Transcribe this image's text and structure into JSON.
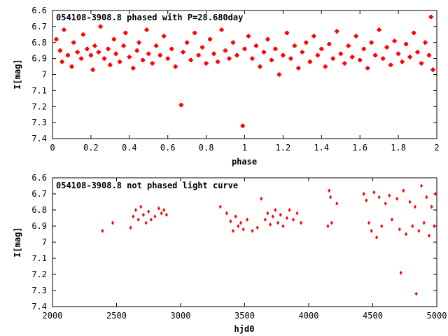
{
  "chart_data": [
    {
      "type": "scatter",
      "title": "054108-3908.8 phased with P=28.680day",
      "xlabel": "phase",
      "ylabel": "I[mag]",
      "xlim": [
        0,
        2
      ],
      "ylim": [
        7.4,
        6.6
      ],
      "y_inverted": true,
      "grid": false,
      "color": "#ff0000",
      "xticks": [
        "0",
        "0.2",
        "0.4",
        "0.6",
        "0.8",
        "1",
        "1.2",
        "1.4",
        "1.6",
        "1.8",
        "2"
      ],
      "yticks": [
        "6.6",
        "6.7",
        "6.8",
        "6.9",
        "7",
        "7.1",
        "7.2",
        "7.3",
        "7.4"
      ],
      "series": [
        {
          "values": [
            [
              0.02,
              6.78
            ],
            [
              0.04,
              6.85
            ],
            [
              0.05,
              6.92
            ],
            [
              0.06,
              6.72
            ],
            [
              0.08,
              6.88
            ],
            [
              0.1,
              6.95
            ],
            [
              0.11,
              6.8
            ],
            [
              0.13,
              6.86
            ],
            [
              0.15,
              6.9
            ],
            [
              0.16,
              6.75
            ],
            [
              0.18,
              6.84
            ],
            [
              0.2,
              6.88
            ],
            [
              0.21,
              6.97
            ],
            [
              0.22,
              6.82
            ],
            [
              0.24,
              6.86
            ],
            [
              0.25,
              6.7
            ],
            [
              0.27,
              6.9
            ],
            [
              0.29,
              6.84
            ],
            [
              0.3,
              6.94
            ],
            [
              0.32,
              6.78
            ],
            [
              0.33,
              6.87
            ],
            [
              0.35,
              6.92
            ],
            [
              0.37,
              6.82
            ],
            [
              0.38,
              6.74
            ],
            [
              0.4,
              6.89
            ],
            [
              0.42,
              6.96
            ],
            [
              0.44,
              6.85
            ],
            [
              0.45,
              6.8
            ],
            [
              0.47,
              6.91
            ],
            [
              0.49,
              6.72
            ],
            [
              0.5,
              6.87
            ],
            [
              0.52,
              6.93
            ],
            [
              0.54,
              6.82
            ],
            [
              0.56,
              6.88
            ],
            [
              0.58,
              6.76
            ],
            [
              0.6,
              6.9
            ],
            [
              0.62,
              6.84
            ],
            [
              0.64,
              6.95
            ],
            [
              0.67,
              7.19
            ],
            [
              0.68,
              6.86
            ],
            [
              0.7,
              6.8
            ],
            [
              0.72,
              6.91
            ],
            [
              0.74,
              6.74
            ],
            [
              0.76,
              6.88
            ],
            [
              0.78,
              6.83
            ],
            [
              0.8,
              6.93
            ],
            [
              0.82,
              6.78
            ],
            [
              0.84,
              6.87
            ],
            [
              0.86,
              6.92
            ],
            [
              0.88,
              6.72
            ],
            [
              0.9,
              6.85
            ],
            [
              0.92,
              6.9
            ],
            [
              0.94,
              6.8
            ],
            [
              0.96,
              6.88
            ],
            [
              0.99,
              7.32
            ],
            [
              1.0,
              6.84
            ],
            [
              1.02,
              6.76
            ],
            [
              1.04,
              6.9
            ],
            [
              1.06,
              6.82
            ],
            [
              1.08,
              6.95
            ],
            [
              1.1,
              6.86
            ],
            [
              1.12,
              6.78
            ],
            [
              1.14,
              6.91
            ],
            [
              1.16,
              6.84
            ],
            [
              1.18,
              7.0
            ],
            [
              1.2,
              6.88
            ],
            [
              1.22,
              6.74
            ],
            [
              1.24,
              6.9
            ],
            [
              1.26,
              6.82
            ],
            [
              1.28,
              6.96
            ],
            [
              1.3,
              6.86
            ],
            [
              1.32,
              6.8
            ],
            [
              1.34,
              6.92
            ],
            [
              1.36,
              6.76
            ],
            [
              1.38,
              6.88
            ],
            [
              1.4,
              6.84
            ],
            [
              1.42,
              6.95
            ],
            [
              1.44,
              6.81
            ],
            [
              1.46,
              6.9
            ],
            [
              1.48,
              6.73
            ],
            [
              1.5,
              6.87
            ],
            [
              1.52,
              6.93
            ],
            [
              1.54,
              6.82
            ],
            [
              1.56,
              6.89
            ],
            [
              1.58,
              6.76
            ],
            [
              1.6,
              6.91
            ],
            [
              1.62,
              6.84
            ],
            [
              1.64,
              6.96
            ],
            [
              1.66,
              6.8
            ],
            [
              1.68,
              6.88
            ],
            [
              1.7,
              6.72
            ],
            [
              1.72,
              6.9
            ],
            [
              1.74,
              6.83
            ],
            [
              1.76,
              6.94
            ],
            [
              1.78,
              6.79
            ],
            [
              1.8,
              6.87
            ],
            [
              1.82,
              6.92
            ],
            [
              1.84,
              6.81
            ],
            [
              1.86,
              6.89
            ],
            [
              1.88,
              6.74
            ],
            [
              1.9,
              6.86
            ],
            [
              1.92,
              6.93
            ],
            [
              1.94,
              6.8
            ],
            [
              1.96,
              6.88
            ],
            [
              1.97,
              6.64
            ],
            [
              1.98,
              6.97
            ]
          ]
        }
      ]
    },
    {
      "type": "scatter",
      "title": "054108-3908.8 not phased light curve",
      "xlabel": "hjd0",
      "ylabel": "I[mag]",
      "xlim": [
        2000,
        5000
      ],
      "ylim": [
        7.4,
        6.6
      ],
      "y_inverted": true,
      "grid": false,
      "color": "#ff0000",
      "xticks": [
        "2000",
        "2500",
        "3000",
        "3500",
        "4000",
        "4500",
        "5000"
      ],
      "yticks": [
        "6.6",
        "6.7",
        "6.8",
        "6.9",
        "7",
        "7.1",
        "7.2",
        "7.3",
        "7.4"
      ],
      "series": [
        {
          "values": [
            [
              2390,
              6.93
            ],
            [
              2470,
              6.88
            ],
            [
              2610,
              6.91
            ],
            [
              2630,
              6.84
            ],
            [
              2650,
              6.8
            ],
            [
              2670,
              6.86
            ],
            [
              2690,
              6.78
            ],
            [
              2710,
              6.83
            ],
            [
              2730,
              6.88
            ],
            [
              2750,
              6.81
            ],
            [
              2770,
              6.86
            ],
            [
              2800,
              6.84
            ],
            [
              2830,
              6.79
            ],
            [
              2850,
              6.82
            ],
            [
              2870,
              6.8
            ],
            [
              2890,
              6.83
            ],
            [
              3310,
              6.78
            ],
            [
              3360,
              6.82
            ],
            [
              3390,
              6.87
            ],
            [
              3410,
              6.93
            ],
            [
              3430,
              6.84
            ],
            [
              3450,
              6.9
            ],
            [
              3470,
              6.88
            ],
            [
              3490,
              6.92
            ],
            [
              3520,
              6.86
            ],
            [
              3560,
              6.93
            ],
            [
              3600,
              6.91
            ],
            [
              3630,
              6.73
            ],
            [
              3660,
              6.86
            ],
            [
              3680,
              6.82
            ],
            [
              3700,
              6.89
            ],
            [
              3720,
              6.84
            ],
            [
              3740,
              6.8
            ],
            [
              3760,
              6.88
            ],
            [
              3780,
              6.83
            ],
            [
              3800,
              6.9
            ],
            [
              3830,
              6.85
            ],
            [
              3850,
              6.8
            ],
            [
              3880,
              6.86
            ],
            [
              3910,
              6.82
            ],
            [
              3940,
              6.88
            ],
            [
              4150,
              6.9
            ],
            [
              4160,
              6.68
            ],
            [
              4170,
              6.72
            ],
            [
              4180,
              6.88
            ],
            [
              4220,
              6.76
            ],
            [
              4430,
              6.7
            ],
            [
              4450,
              6.74
            ],
            [
              4470,
              6.88
            ],
            [
              4490,
              6.93
            ],
            [
              4510,
              6.69
            ],
            [
              4530,
              6.97
            ],
            [
              4550,
              6.72
            ],
            [
              4570,
              6.9
            ],
            [
              4600,
              6.76
            ],
            [
              4630,
              6.71
            ],
            [
              4650,
              6.86
            ],
            [
              4690,
              6.73
            ],
            [
              4710,
              6.92
            ],
            [
              4720,
              7.19
            ],
            [
              4740,
              6.68
            ],
            [
              4760,
              6.95
            ],
            [
              4790,
              6.75
            ],
            [
              4810,
              6.9
            ],
            [
              4830,
              6.78
            ],
            [
              4840,
              7.32
            ],
            [
              4860,
              6.93
            ],
            [
              4880,
              6.65
            ],
            [
              4900,
              6.88
            ],
            [
              4920,
              6.72
            ],
            [
              4940,
              6.96
            ],
            [
              4960,
              6.78
            ],
            [
              4980,
              6.9
            ],
            [
              4990,
              6.7
            ]
          ]
        }
      ]
    }
  ]
}
